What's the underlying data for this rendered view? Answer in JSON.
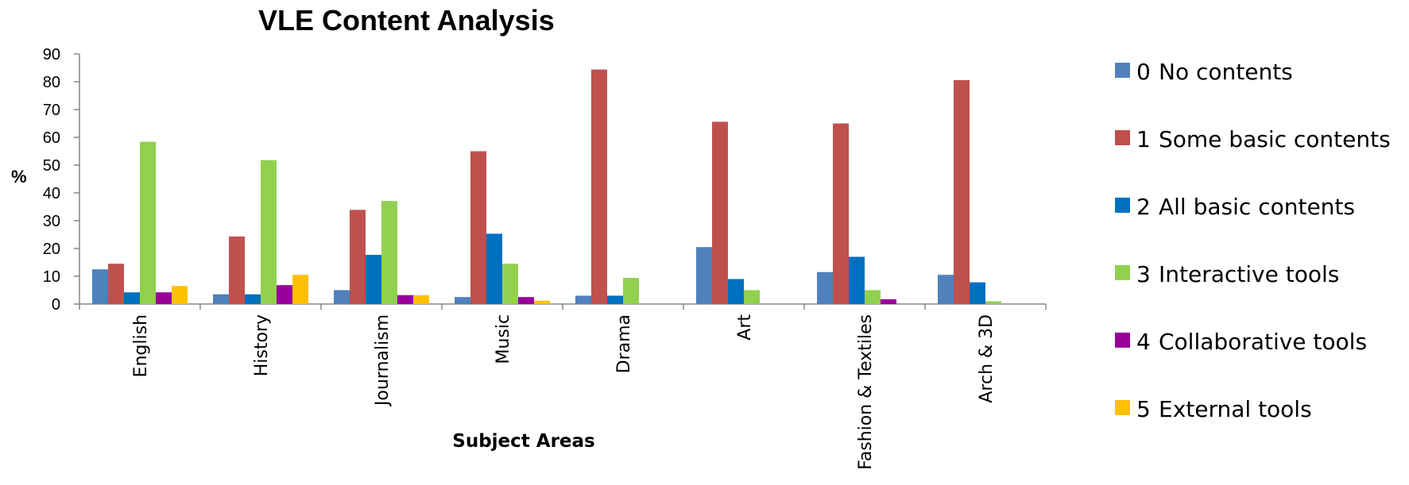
{
  "chart_data": {
    "type": "bar",
    "title": "VLE Content Analysis",
    "xlabel": "Subject Areas",
    "ylabel": "%",
    "ylim": [
      0,
      90
    ],
    "yticks": [
      0,
      10,
      20,
      30,
      40,
      50,
      60,
      70,
      80,
      90
    ],
    "grid": false,
    "legend_position": "right",
    "categories": [
      "English",
      "History",
      "Journalism",
      "Music",
      "Drama",
      "Art",
      "Fashion & Textiles",
      "Arch & 3D"
    ],
    "series": [
      {
        "code": "0",
        "name": "No contents",
        "color": "#4F81BD",
        "values": [
          12.5,
          3.5,
          5,
          2.5,
          3,
          20.5,
          11.5,
          10.5
        ]
      },
      {
        "code": "1",
        "name": "Some basic contents",
        "color": "#C0504D",
        "values": [
          14.5,
          24.3,
          33.9,
          55,
          84.4,
          65.6,
          65,
          80.6
        ]
      },
      {
        "code": "2",
        "name": "All basic contents",
        "color": "#0070C0",
        "values": [
          4.2,
          3.5,
          17.7,
          25.3,
          3,
          9,
          17,
          7.8
        ]
      },
      {
        "code": "3",
        "name": "Interactive tools",
        "color": "#92D050",
        "values": [
          58.4,
          51.8,
          37.1,
          14.5,
          9.4,
          5,
          5,
          1
        ]
      },
      {
        "code": "4",
        "name": "Collaborative tools",
        "color": "#990099",
        "values": [
          4.2,
          6.8,
          3.2,
          2.5,
          0,
          0,
          1.7,
          0
        ]
      },
      {
        "code": "5",
        "name": "External tools",
        "color": "#FFC000",
        "values": [
          6.5,
          10.5,
          3.2,
          1.2,
          0,
          0,
          0,
          0
        ]
      }
    ]
  }
}
